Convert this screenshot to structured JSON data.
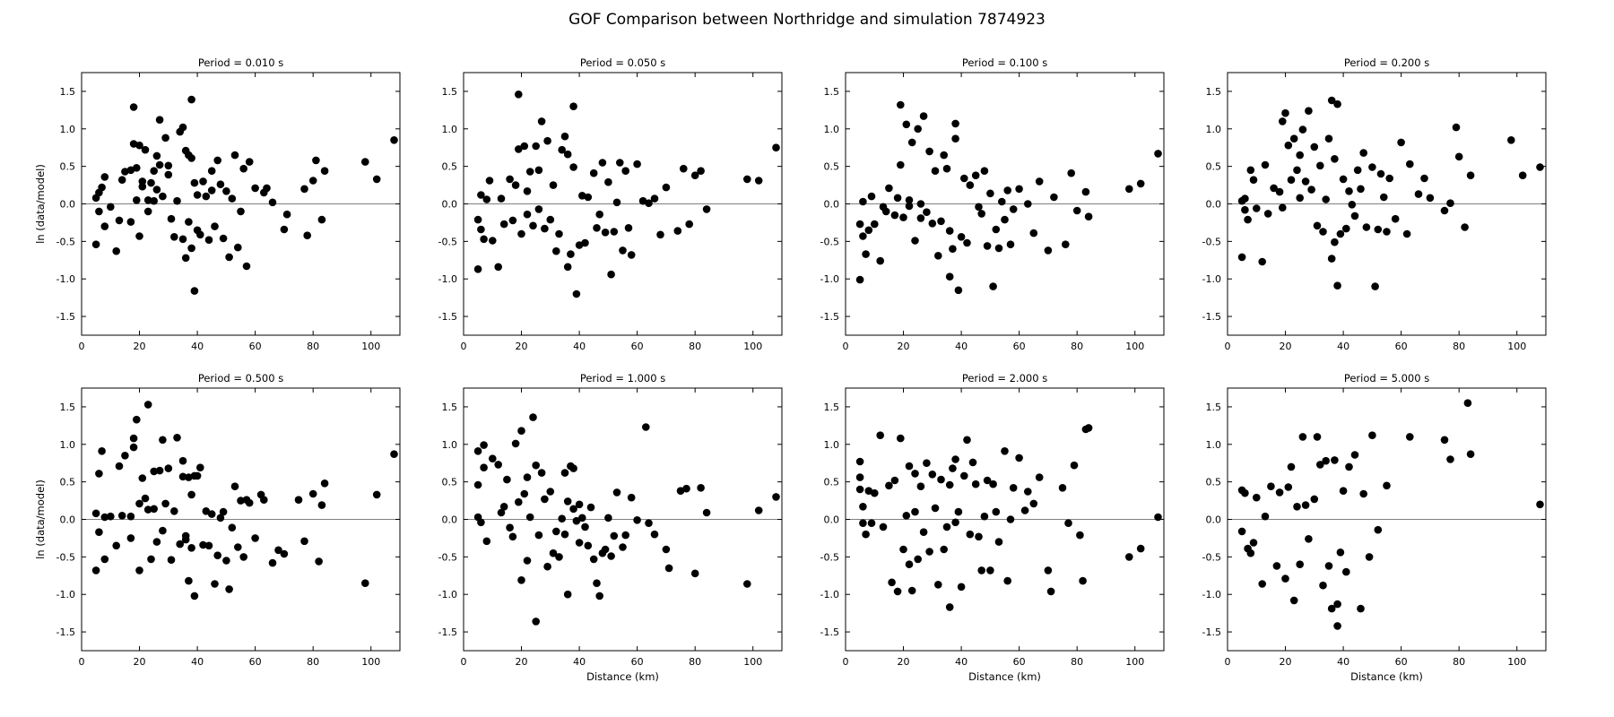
{
  "title": "GOF Comparison between Northridge and simulation 7874923",
  "chart_data": [
    {
      "type": "scatter",
      "title": "Period = 0.010 s",
      "xlabel": "",
      "ylabel": "ln (data/model)",
      "xlim": [
        0,
        110
      ],
      "ylim": [
        -1.75,
        1.75
      ],
      "xticks": [
        0,
        20,
        40,
        60,
        80,
        100
      ],
      "yticks": [
        -1.5,
        -1.0,
        -0.5,
        0.0,
        0.5,
        1.0,
        1.5
      ],
      "x": [
        5,
        5,
        6,
        6,
        7,
        8,
        8,
        10,
        12,
        13,
        14,
        15,
        17,
        17,
        18,
        18,
        19,
        19,
        20,
        20,
        21,
        21,
        22,
        23,
        23,
        24,
        25,
        25,
        26,
        26,
        27,
        27,
        28,
        29,
        30,
        30,
        31,
        32,
        33,
        34,
        35,
        35,
        36,
        36,
        37,
        37,
        38,
        38,
        38,
        39,
        39,
        40,
        40,
        41,
        42,
        43,
        44,
        45,
        45,
        46,
        47,
        48,
        49,
        50,
        51,
        52,
        53,
        54,
        55,
        56,
        57,
        58,
        60,
        63,
        64,
        66,
        70,
        71,
        77,
        78,
        80,
        81,
        83,
        84,
        98,
        102,
        108
      ],
      "y": [
        0.08,
        -0.54,
        0.15,
        -0.1,
        0.22,
        0.36,
        -0.3,
        -0.04,
        -0.63,
        -0.22,
        0.32,
        0.43,
        -0.24,
        0.45,
        1.29,
        0.8,
        0.05,
        0.48,
        0.78,
        -0.43,
        0.3,
        0.23,
        0.72,
        0.05,
        -0.1,
        0.28,
        0.44,
        0.04,
        0.64,
        0.19,
        1.12,
        0.52,
        0.1,
        0.88,
        0.39,
        0.51,
        -0.2,
        -0.44,
        0.04,
        0.96,
        1.02,
        -0.47,
        0.71,
        -0.72,
        0.65,
        -0.24,
        1.39,
        -0.59,
        0.61,
        -1.16,
        0.28,
        -0.35,
        0.12,
        -0.41,
        0.3,
        0.1,
        -0.48,
        0.44,
        0.18,
        -0.3,
        0.58,
        0.26,
        -0.46,
        0.17,
        -0.71,
        0.07,
        0.65,
        -0.58,
        -0.1,
        0.47,
        -0.83,
        0.56,
        0.21,
        0.15,
        0.21,
        0.02,
        -0.34,
        -0.14,
        0.2,
        -0.42,
        0.31,
        0.58,
        -0.21,
        0.44,
        0.56,
        0.33,
        0.85
      ]
    },
    {
      "type": "scatter",
      "title": "Period = 0.050 s",
      "xlabel": "",
      "ylabel": "",
      "xlim": [
        0,
        110
      ],
      "ylim": [
        -1.75,
        1.75
      ],
      "xticks": [
        0,
        20,
        40,
        60,
        80,
        100
      ],
      "yticks": [
        -1.5,
        -1.0,
        -0.5,
        0.0,
        0.5,
        1.0,
        1.5
      ],
      "x": [
        5,
        5,
        6,
        6,
        7,
        8,
        9,
        10,
        12,
        13,
        14,
        16,
        17,
        18,
        19,
        19,
        20,
        21,
        22,
        22,
        23,
        24,
        25,
        26,
        26,
        27,
        28,
        29,
        30,
        31,
        32,
        33,
        34,
        35,
        36,
        36,
        37,
        38,
        38,
        39,
        40,
        41,
        42,
        43,
        45,
        46,
        47,
        48,
        49,
        50,
        51,
        52,
        53,
        54,
        55,
        56,
        57,
        58,
        60,
        62,
        64,
        66,
        68,
        70,
        74,
        76,
        78,
        80,
        82,
        84,
        98,
        102,
        108
      ],
      "y": [
        -0.87,
        -0.21,
        0.12,
        -0.34,
        -0.47,
        0.06,
        0.31,
        -0.49,
        -0.84,
        0.07,
        -0.27,
        0.33,
        -0.22,
        0.25,
        1.46,
        0.73,
        -0.4,
        0.77,
        0.17,
        -0.14,
        0.43,
        -0.29,
        0.77,
        -0.07,
        0.45,
        1.1,
        -0.33,
        0.84,
        -0.21,
        0.25,
        -0.63,
        -0.4,
        0.72,
        0.9,
        0.66,
        -0.84,
        -0.67,
        1.3,
        0.49,
        -1.2,
        -0.55,
        0.11,
        -0.52,
        0.09,
        0.41,
        -0.32,
        -0.14,
        0.55,
        -0.38,
        0.29,
        -0.94,
        -0.37,
        0.02,
        0.55,
        -0.62,
        0.44,
        -0.32,
        -0.68,
        0.53,
        0.04,
        0.01,
        0.07,
        -0.41,
        0.22,
        -0.36,
        0.47,
        -0.27,
        0.38,
        0.44,
        -0.07,
        0.33,
        0.31,
        0.75
      ]
    },
    {
      "type": "scatter",
      "title": "Period = 0.100 s",
      "xlabel": "",
      "ylabel": "",
      "xlim": [
        0,
        110
      ],
      "ylim": [
        -1.75,
        1.75
      ],
      "xticks": [
        0,
        20,
        40,
        60,
        80,
        100
      ],
      "yticks": [
        -1.5,
        -1.0,
        -0.5,
        0.0,
        0.5,
        1.0,
        1.5
      ],
      "x": [
        5,
        5,
        6,
        6,
        7,
        8,
        9,
        10,
        12,
        13,
        14,
        15,
        17,
        18,
        19,
        19,
        20,
        21,
        22,
        22,
        23,
        24,
        25,
        26,
        26,
        27,
        28,
        29,
        30,
        31,
        32,
        33,
        34,
        35,
        36,
        36,
        37,
        38,
        38,
        39,
        40,
        41,
        42,
        43,
        45,
        46,
        47,
        48,
        49,
        50,
        51,
        52,
        53,
        54,
        55,
        56,
        57,
        58,
        60,
        63,
        65,
        67,
        70,
        72,
        76,
        78,
        80,
        83,
        84,
        98,
        102,
        108
      ],
      "y": [
        -1.01,
        -0.27,
        0.03,
        -0.43,
        -0.67,
        -0.35,
        0.1,
        -0.27,
        -0.76,
        -0.04,
        -0.1,
        0.21,
        -0.15,
        0.08,
        1.32,
        0.52,
        -0.18,
        1.06,
        0.05,
        -0.03,
        0.82,
        -0.49,
        1.0,
        -0.19,
        0.0,
        1.17,
        -0.11,
        0.7,
        -0.26,
        0.44,
        -0.69,
        -0.23,
        0.65,
        0.47,
        -0.36,
        -0.97,
        -0.6,
        1.07,
        0.87,
        -1.15,
        -0.44,
        0.34,
        -0.52,
        0.25,
        0.38,
        -0.04,
        -0.13,
        0.44,
        -0.56,
        0.14,
        -1.1,
        -0.34,
        -0.59,
        0.03,
        -0.21,
        0.18,
        -0.54,
        -0.07,
        0.2,
        0.0,
        -0.39,
        0.3,
        -0.62,
        0.09,
        -0.54,
        0.41,
        -0.09,
        0.16,
        -0.17,
        0.2,
        0.27,
        0.67
      ]
    },
    {
      "type": "scatter",
      "title": "Period = 0.200 s",
      "xlabel": "",
      "ylabel": "",
      "xlim": [
        0,
        110
      ],
      "ylim": [
        -1.75,
        1.75
      ],
      "xticks": [
        0,
        20,
        40,
        60,
        80,
        100
      ],
      "yticks": [
        -1.5,
        -1.0,
        -0.5,
        0.0,
        0.5,
        1.0,
        1.5
      ],
      "x": [
        5,
        5,
        6,
        6,
        7,
        8,
        9,
        10,
        12,
        13,
        14,
        16,
        18,
        19,
        19,
        20,
        21,
        22,
        23,
        24,
        25,
        25,
        26,
        27,
        28,
        29,
        30,
        31,
        32,
        33,
        34,
        35,
        36,
        36,
        37,
        37,
        38,
        38,
        39,
        40,
        41,
        42,
        43,
        44,
        45,
        46,
        47,
        48,
        50,
        51,
        52,
        53,
        54,
        55,
        56,
        58,
        60,
        62,
        63,
        66,
        68,
        70,
        75,
        77,
        79,
        80,
        82,
        84,
        98,
        102,
        108
      ],
      "y": [
        -0.71,
        0.04,
        -0.08,
        0.07,
        -0.21,
        0.45,
        0.32,
        -0.06,
        -0.77,
        0.52,
        -0.13,
        0.21,
        0.16,
        1.1,
        -0.05,
        1.21,
        0.78,
        0.32,
        0.87,
        0.45,
        0.65,
        0.08,
        0.99,
        0.3,
        1.24,
        0.19,
        0.76,
        -0.29,
        0.51,
        -0.37,
        0.06,
        0.87,
        1.38,
        -0.73,
        0.6,
        -0.51,
        1.33,
        -1.09,
        -0.4,
        0.33,
        -0.33,
        0.17,
        -0.01,
        -0.16,
        0.45,
        0.2,
        0.68,
        -0.31,
        0.49,
        -1.1,
        -0.34,
        0.4,
        0.09,
        -0.37,
        0.34,
        -0.2,
        0.82,
        -0.4,
        0.53,
        0.13,
        0.34,
        0.08,
        -0.09,
        0.01,
        1.02,
        0.63,
        -0.31,
        0.38,
        0.85,
        0.38,
        0.49
      ]
    },
    {
      "type": "scatter",
      "title": "Period = 0.500 s",
      "xlabel": "",
      "ylabel": "ln (data/model)",
      "xlim": [
        0,
        110
      ],
      "ylim": [
        -1.75,
        1.75
      ],
      "xticks": [
        0,
        20,
        40,
        60,
        80,
        100
      ],
      "yticks": [
        -1.5,
        -1.0,
        -0.5,
        0.0,
        0.5,
        1.0,
        1.5
      ],
      "x": [
        5,
        5,
        6,
        6,
        7,
        8,
        8,
        10,
        12,
        13,
        14,
        15,
        17,
        17,
        18,
        18,
        19,
        20,
        20,
        21,
        22,
        23,
        23,
        24,
        25,
        25,
        26,
        27,
        28,
        28,
        29,
        30,
        31,
        32,
        33,
        34,
        35,
        35,
        36,
        36,
        37,
        37,
        38,
        38,
        39,
        39,
        40,
        41,
        42,
        43,
        44,
        45,
        46,
        47,
        48,
        49,
        50,
        51,
        52,
        53,
        54,
        55,
        56,
        57,
        58,
        60,
        62,
        63,
        66,
        68,
        70,
        75,
        77,
        80,
        82,
        83,
        84,
        98,
        102,
        108
      ],
      "y": [
        0.08,
        -0.68,
        0.61,
        -0.17,
        0.91,
        0.03,
        -0.53,
        0.04,
        -0.35,
        0.71,
        0.05,
        0.85,
        -0.25,
        0.04,
        1.08,
        0.96,
        1.33,
        -0.68,
        0.21,
        0.55,
        0.28,
        1.53,
        0.13,
        -0.53,
        0.64,
        0.14,
        -0.3,
        0.65,
        -0.15,
        1.06,
        0.21,
        0.68,
        -0.54,
        0.11,
        1.09,
        -0.33,
        0.57,
        0.78,
        -0.22,
        -0.27,
        0.56,
        -0.82,
        0.33,
        -0.38,
        -1.02,
        0.58,
        0.58,
        0.69,
        -0.34,
        0.11,
        -0.35,
        0.07,
        -0.86,
        -0.48,
        0.02,
        0.1,
        -0.55,
        -0.93,
        -0.11,
        0.44,
        -0.37,
        0.25,
        -0.5,
        0.26,
        0.22,
        -0.25,
        0.33,
        0.26,
        -0.58,
        -0.41,
        -0.46,
        0.26,
        -0.29,
        0.34,
        -0.56,
        0.19,
        0.48,
        -0.85,
        0.33,
        0.87
      ]
    },
    {
      "type": "scatter",
      "title": "Period = 1.000 s",
      "xlabel": "Distance (km)",
      "ylabel": "",
      "xlim": [
        0,
        110
      ],
      "ylim": [
        -1.75,
        1.75
      ],
      "xticks": [
        0,
        20,
        40,
        60,
        80,
        100
      ],
      "yticks": [
        -1.5,
        -1.0,
        -0.5,
        0.0,
        0.5,
        1.0,
        1.5
      ],
      "x": [
        5,
        5,
        5,
        6,
        7,
        7,
        8,
        10,
        12,
        13,
        14,
        15,
        16,
        17,
        18,
        19,
        20,
        20,
        21,
        22,
        22,
        23,
        24,
        25,
        25,
        26,
        27,
        28,
        29,
        30,
        31,
        32,
        33,
        34,
        35,
        35,
        36,
        36,
        37,
        38,
        38,
        39,
        40,
        40,
        41,
        42,
        43,
        44,
        45,
        46,
        47,
        48,
        49,
        50,
        51,
        52,
        53,
        55,
        56,
        58,
        60,
        63,
        64,
        66,
        70,
        71,
        75,
        77,
        80,
        82,
        84,
        98,
        102,
        108
      ],
      "y": [
        0.03,
        0.46,
        0.91,
        -0.04,
        0.99,
        0.69,
        -0.29,
        0.81,
        0.73,
        0.09,
        0.17,
        0.53,
        -0.11,
        -0.23,
        1.01,
        0.23,
        1.18,
        -0.81,
        0.34,
        -0.55,
        0.56,
        0.03,
        1.36,
        -1.36,
        0.72,
        -0.21,
        0.62,
        0.27,
        -0.63,
        0.37,
        -0.45,
        -0.16,
        -0.5,
        0.01,
        0.62,
        -0.2,
        -1.0,
        0.24,
        0.71,
        0.68,
        0.14,
        -0.02,
        0.2,
        -0.31,
        0.02,
        -0.1,
        -0.35,
        0.16,
        -0.53,
        -0.85,
        -1.02,
        -0.45,
        -0.4,
        0.02,
        -0.49,
        -0.22,
        0.36,
        -0.37,
        -0.21,
        0.29,
        -0.01,
        1.23,
        -0.05,
        -0.2,
        -0.4,
        -0.65,
        0.38,
        0.41,
        -0.72,
        0.42,
        0.09,
        -0.86,
        0.12,
        0.3
      ]
    },
    {
      "type": "scatter",
      "title": "Period = 2.000 s",
      "xlabel": "Distance (km)",
      "ylabel": "",
      "xlim": [
        0,
        110
      ],
      "ylim": [
        -1.75,
        1.75
      ],
      "xticks": [
        0,
        20,
        40,
        60,
        80,
        100
      ],
      "yticks": [
        -1.5,
        -1.0,
        -0.5,
        0.0,
        0.5,
        1.0,
        1.5
      ],
      "x": [
        5,
        5,
        5,
        6,
        6,
        7,
        8,
        9,
        10,
        12,
        13,
        15,
        16,
        17,
        18,
        19,
        20,
        21,
        22,
        22,
        23,
        24,
        24,
        25,
        26,
        27,
        28,
        29,
        30,
        31,
        32,
        33,
        34,
        35,
        36,
        36,
        37,
        38,
        38,
        39,
        40,
        41,
        42,
        43,
        44,
        45,
        46,
        47,
        48,
        49,
        50,
        51,
        52,
        53,
        55,
        56,
        57,
        58,
        60,
        62,
        63,
        65,
        67,
        70,
        71,
        75,
        77,
        79,
        81,
        82,
        83,
        84,
        98,
        102,
        108
      ],
      "y": [
        0.4,
        0.56,
        0.77,
        0.17,
        -0.05,
        -0.2,
        0.38,
        -0.05,
        0.35,
        1.12,
        -0.1,
        0.45,
        -0.84,
        0.52,
        -0.96,
        1.08,
        -0.4,
        0.05,
        -0.6,
        0.71,
        -0.95,
        0.1,
        0.61,
        -0.53,
        0.44,
        -0.17,
        0.75,
        -0.43,
        0.6,
        0.15,
        -0.87,
        0.53,
        -0.4,
        -0.1,
        0.46,
        -1.17,
        0.68,
        0.8,
        -0.04,
        0.1,
        -0.9,
        0.58,
        1.06,
        -0.2,
        0.76,
        0.47,
        -0.23,
        -0.68,
        0.04,
        0.52,
        -0.68,
        0.47,
        0.1,
        -0.3,
        0.91,
        -0.82,
        0.0,
        0.42,
        0.82,
        0.12,
        0.37,
        0.21,
        0.56,
        -0.68,
        -0.96,
        0.42,
        -0.05,
        0.72,
        -0.21,
        -0.82,
        1.2,
        1.22,
        -0.5,
        -0.39,
        0.03
      ]
    },
    {
      "type": "scatter",
      "title": "Period = 5.000 s",
      "xlabel": "Distance (km)",
      "ylabel": "",
      "xlim": [
        0,
        110
      ],
      "ylim": [
        -1.75,
        1.75
      ],
      "xticks": [
        0,
        20,
        40,
        60,
        80,
        100
      ],
      "yticks": [
        -1.5,
        -1.0,
        -0.5,
        0.0,
        0.5,
        1.0,
        1.5
      ],
      "x": [
        5,
        5,
        6,
        7,
        8,
        9,
        10,
        12,
        13,
        15,
        17,
        18,
        20,
        21,
        22,
        23,
        24,
        25,
        26,
        27,
        28,
        30,
        31,
        32,
        33,
        34,
        35,
        36,
        37,
        38,
        38,
        39,
        40,
        41,
        42,
        44,
        46,
        47,
        49,
        50,
        52,
        55,
        63,
        75,
        77,
        83,
        84,
        108
      ],
      "y": [
        0.39,
        -0.16,
        0.35,
        -0.39,
        -0.45,
        -0.31,
        0.29,
        -0.86,
        0.04,
        0.44,
        -0.62,
        0.36,
        -0.79,
        0.43,
        0.7,
        -1.08,
        0.17,
        -0.6,
        1.1,
        0.19,
        -0.26,
        0.27,
        1.1,
        0.73,
        -0.88,
        0.78,
        -0.62,
        -1.19,
        0.79,
        -1.13,
        -1.42,
        -0.44,
        0.38,
        -0.7,
        0.7,
        0.86,
        -1.19,
        0.34,
        -0.5,
        1.12,
        -0.14,
        0.45,
        1.1,
        1.06,
        0.8,
        1.55,
        0.87,
        0.2
      ]
    }
  ]
}
